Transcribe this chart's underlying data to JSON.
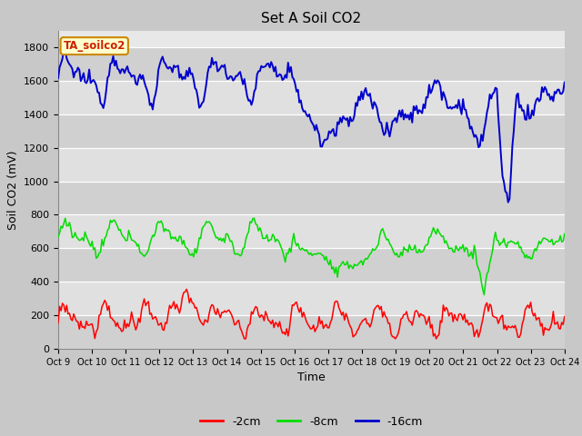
{
  "title": "Set A Soil CO2",
  "ylabel": "Soil CO2 (mV)",
  "xlabel": "Time",
  "legend_label": "TA_soilco2",
  "xtick_labels": [
    "Oct 9",
    "Oct 10",
    "Oct 11",
    "Oct 12",
    "Oct 13",
    "Oct 14",
    "Oct 15",
    "Oct 16",
    "Oct 17",
    "Oct 18",
    "Oct 19",
    "Oct 20",
    "Oct 21",
    "Oct 22",
    "Oct 23",
    "Oct 24"
  ],
  "ylim": [
    0,
    1900
  ],
  "yticks": [
    0,
    200,
    400,
    600,
    800,
    1000,
    1200,
    1400,
    1600,
    1800
  ],
  "colors": {
    "red": "#ff0000",
    "green": "#00dd00",
    "blue": "#0000cc"
  },
  "fig_bg": "#c8c8c8",
  "plot_bg_light": "#e8e8e8",
  "plot_bg_dark": "#d8d8d8",
  "legend_bg": "#ffffcc",
  "legend_border": "#cc8800",
  "title_fontsize": 11,
  "axis_fontsize": 9,
  "tick_fontsize": 8
}
